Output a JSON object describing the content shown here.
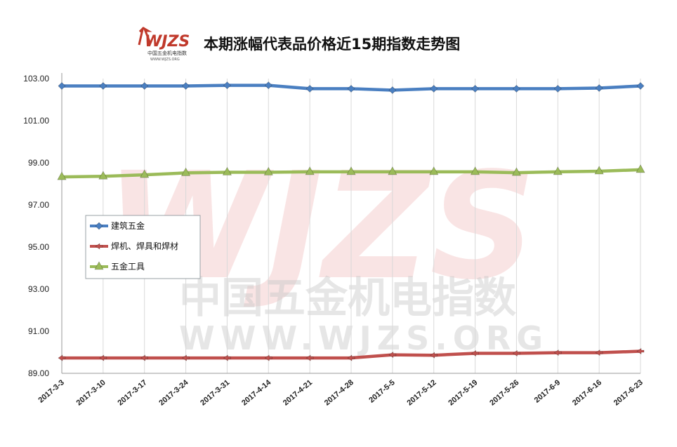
{
  "header": {
    "logo_text": "WJZS",
    "logo_subtitle": "中国五金机电指数",
    "logo_url": "WWW.WJZS.ORG"
  },
  "watermark": {
    "logo_text": "WJZS",
    "main_text": "中国五金机电指数",
    "url_text": "WWW.WJZS.ORG"
  },
  "colors": {
    "series_blue": "#4a7fc1",
    "series_red": "#c0504d",
    "series_green": "#9bbb59",
    "grid": "#d9d9d9",
    "axis": "#999999"
  },
  "chart_data": {
    "type": "line",
    "title": "本期涨幅代表品价格近15期指数走势图",
    "xlabel": "",
    "ylabel": "",
    "categories": [
      "2017-3-3",
      "2017-3-10",
      "2017-3-17",
      "2017-3-24",
      "2017-3-31",
      "2017-4-14",
      "2017-4-21",
      "2017-4-28",
      "2017-5-5",
      "2017-5-12",
      "2017-5-19",
      "2017-5-26",
      "2017-6-9",
      "2017-6-16",
      "2017-6-23"
    ],
    "ylim": [
      89.0,
      103.0
    ],
    "yticks": [
      "89.00",
      "91.00",
      "93.00",
      "95.00",
      "97.00",
      "99.00",
      "101.00",
      "103.00"
    ],
    "grid": "vertical",
    "legend_position": "left-middle",
    "series": [
      {
        "name": "建筑五金",
        "marker": "diamond",
        "color": "#4a7fc1",
        "values": [
          102.65,
          102.65,
          102.65,
          102.65,
          102.68,
          102.68,
          102.52,
          102.52,
          102.45,
          102.52,
          102.52,
          102.52,
          102.52,
          102.55,
          102.65
        ]
      },
      {
        "name": "焊机、焊具和焊材",
        "marker": "arrow-left",
        "color": "#c0504d",
        "values": [
          89.73,
          89.73,
          89.73,
          89.73,
          89.73,
          89.73,
          89.73,
          89.73,
          89.88,
          89.86,
          89.95,
          89.95,
          89.98,
          89.98,
          90.05
        ]
      },
      {
        "name": "五金工具",
        "marker": "triangle",
        "color": "#9bbb59",
        "values": [
          98.33,
          98.36,
          98.43,
          98.52,
          98.55,
          98.55,
          98.57,
          98.57,
          98.57,
          98.57,
          98.57,
          98.53,
          98.57,
          98.6,
          98.67
        ]
      }
    ]
  }
}
